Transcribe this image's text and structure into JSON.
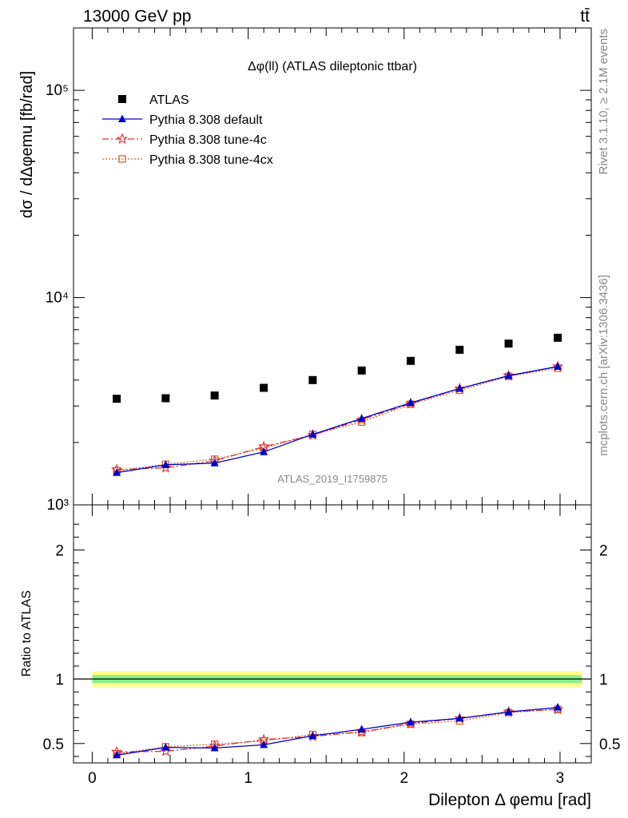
{
  "header": {
    "energy_label": "13000 GeV pp",
    "process_label": "tt̄"
  },
  "side_labels": {
    "rivet": "Rivet 3.1.10, ≥ 2.1M events",
    "mcplots": "mcplots.cern.ch [arXiv:1306.3436]"
  },
  "watermark": "ATLAS_2019_I1759875",
  "chart_data": [
    {
      "type": "scatter",
      "panel": "main",
      "title": "Δφ(ll) (ATLAS dileptonic ttbar)",
      "ylabel": "dσ / dΔφemu [fb/rad]",
      "yscale": "log",
      "ylim": [
        1000,
        200000
      ],
      "xlim": [
        -0.12,
        3.2
      ],
      "ytick_labels": [
        "10³",
        "10⁴",
        "10⁵"
      ],
      "legend_position": "top-left",
      "x": [
        0.157,
        0.471,
        0.785,
        1.1,
        1.414,
        1.728,
        2.042,
        2.356,
        2.67,
        2.985
      ],
      "series": [
        {
          "name": "ATLAS",
          "color": "#000000",
          "marker": "square",
          "line": "none",
          "values": [
            3250,
            3270,
            3370,
            3670,
            4000,
            4450,
            4950,
            5600,
            6000,
            6400
          ]
        },
        {
          "name": "Pythia 8.308 default",
          "color": "#0000cc",
          "marker": "triangle",
          "line": "solid",
          "values": [
            1430,
            1560,
            1590,
            1800,
            2190,
            2610,
            3110,
            3640,
            4200,
            4650
          ]
        },
        {
          "name": "Pythia 8.308 tune-4c",
          "color": "#dd3333",
          "marker": "star",
          "line": "dashdot",
          "values": [
            1480,
            1510,
            1630,
            1910,
            2170,
            2580,
            3080,
            3640,
            4200,
            4650
          ]
        },
        {
          "name": "Pythia 8.308 tune-4cx",
          "color": "#cc6633",
          "marker": "open-square",
          "line": "dotted",
          "values": [
            1460,
            1570,
            1660,
            1880,
            2190,
            2510,
            3060,
            3570,
            4170,
            4560
          ]
        }
      ]
    },
    {
      "type": "line",
      "panel": "ratio",
      "ylabel": "Ratio to ATLAS",
      "xlabel": "Dilepton Δ φemu [rad]",
      "ylim": [
        0.35,
        2.35
      ],
      "xlim": [
        -0.12,
        3.2
      ],
      "xticks": [
        0,
        1,
        2,
        3
      ],
      "yticks": [
        0.5,
        1,
        2
      ],
      "reference": {
        "value": 1,
        "band_inner": [
          0.97,
          1.03
        ],
        "band_outer": [
          0.94,
          1.06
        ]
      },
      "x": [
        0.157,
        0.471,
        0.785,
        1.1,
        1.414,
        1.728,
        2.042,
        2.356,
        2.67,
        2.985
      ],
      "series": [
        {
          "name": "Pythia 8.308 default",
          "color": "#0000cc",
          "marker": "triangle",
          "line": "solid",
          "values": [
            0.41,
            0.47,
            0.465,
            0.49,
            0.56,
            0.61,
            0.665,
            0.695,
            0.745,
            0.78
          ]
        },
        {
          "name": "Pythia 8.308 tune-4c",
          "color": "#dd3333",
          "marker": "star",
          "line": "dashdot",
          "values": [
            0.435,
            0.44,
            0.48,
            0.53,
            0.555,
            0.59,
            0.655,
            0.695,
            0.745,
            0.765
          ]
        },
        {
          "name": "Pythia 8.308 tune-4cx",
          "color": "#cc6633",
          "marker": "open-square",
          "line": "dotted",
          "values": [
            0.42,
            0.475,
            0.495,
            0.52,
            0.57,
            0.585,
            0.65,
            0.675,
            0.74,
            0.765
          ]
        }
      ]
    }
  ],
  "colors": {
    "band_inner": "#88ee88",
    "band_outer": "#ffff88"
  }
}
